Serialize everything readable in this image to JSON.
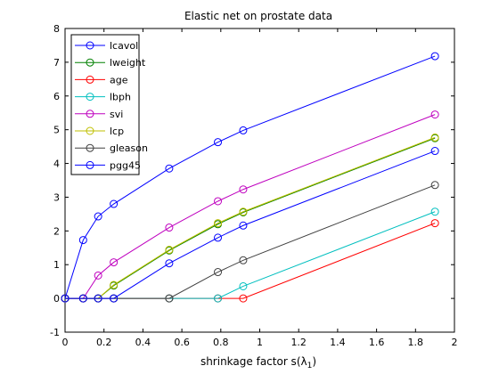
{
  "chart_data": {
    "type": "line",
    "title": "Elastic net on prostate data",
    "xlabel": "shrinkage factor s(λ",
    "xlabel_sub": "1",
    "xlabel_close": ")",
    "ylabel": "",
    "xlim": [
      0,
      2
    ],
    "ylim": [
      -1,
      8
    ],
    "xticks": [
      0,
      0.2,
      0.4,
      0.6,
      0.8,
      1,
      1.2,
      1.4,
      1.6,
      1.8,
      2
    ],
    "yticks": [
      -1,
      0,
      1,
      2,
      3,
      4,
      5,
      6,
      7,
      8
    ],
    "grid": false,
    "legend_position": "top-left",
    "series": [
      {
        "name": "lcavol",
        "color": "#0000ff",
        "x": [
          0,
          0.093,
          0.17,
          0.25,
          0.535,
          0.785,
          0.915,
          1.9
        ],
        "y": [
          0,
          1.73,
          2.43,
          2.8,
          3.85,
          4.63,
          4.98,
          7.18
        ]
      },
      {
        "name": "lweight",
        "color": "#008000",
        "x": [
          0,
          0.093,
          0.17,
          0.25,
          0.535,
          0.785,
          0.915,
          1.9
        ],
        "y": [
          0,
          0,
          0,
          0.38,
          1.42,
          2.2,
          2.55,
          4.75
        ]
      },
      {
        "name": "age",
        "color": "#ff0000",
        "x": [
          0,
          0.093,
          0.17,
          0.25,
          0.535,
          0.785,
          0.915,
          1.9
        ],
        "y": [
          0,
          0,
          0,
          0,
          0,
          0,
          0,
          2.23
        ]
      },
      {
        "name": "lbph",
        "color": "#00bfbf",
        "x": [
          0,
          0.093,
          0.17,
          0.25,
          0.535,
          0.785,
          0.915,
          1.9
        ],
        "y": [
          0,
          0,
          0,
          0,
          0,
          0,
          0.36,
          2.57
        ]
      },
      {
        "name": "svi",
        "color": "#bf00bf",
        "x": [
          0,
          0.093,
          0.17,
          0.25,
          0.535,
          0.785,
          0.915,
          1.9
        ],
        "y": [
          0,
          0,
          0.68,
          1.07,
          2.1,
          2.88,
          3.23,
          5.45
        ]
      },
      {
        "name": "lcp",
        "color": "#bfbf00",
        "x": [
          0,
          0.093,
          0.17,
          0.25,
          0.535,
          0.785,
          0.915,
          1.9
        ],
        "y": [
          0,
          0,
          0,
          0.4,
          1.44,
          2.23,
          2.57,
          4.77
        ]
      },
      {
        "name": "gleason",
        "color": "#404040",
        "x": [
          0,
          0.093,
          0.17,
          0.25,
          0.535,
          0.785,
          0.915,
          1.9
        ],
        "y": [
          0,
          0,
          0,
          0,
          0,
          0.78,
          1.13,
          3.36
        ]
      },
      {
        "name": "pgg45",
        "color": "#0000ff",
        "x": [
          0,
          0.093,
          0.17,
          0.25,
          0.535,
          0.785,
          0.915,
          1.9
        ],
        "y": [
          0,
          0,
          0,
          0,
          1.04,
          1.8,
          2.16,
          4.37
        ]
      }
    ]
  }
}
